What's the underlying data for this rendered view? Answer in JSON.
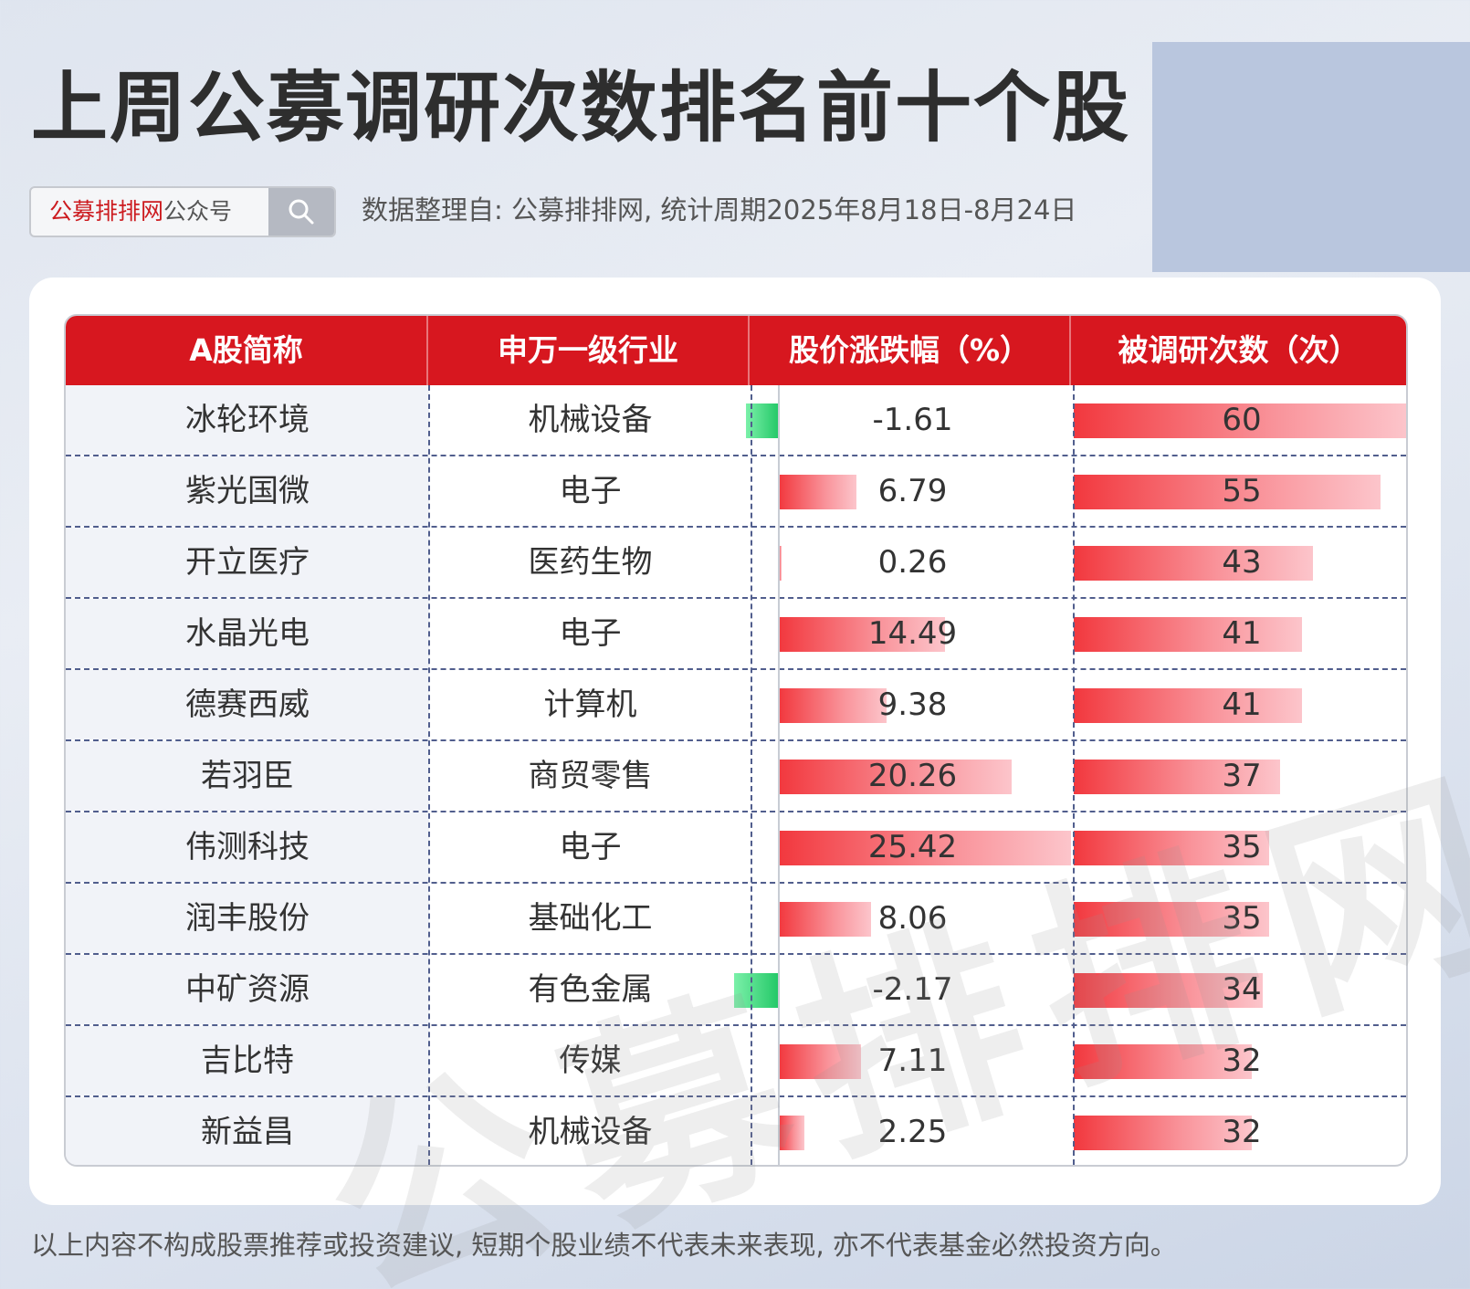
{
  "title": "上周公募调研次数排名前十个股",
  "search": {
    "brand": "公募排排网",
    "suffix": "公众号"
  },
  "source": "数据整理自: 公募排排网, 统计周期2025年8月18日-8月24日",
  "watermark": "公募排排网",
  "disclaimer": "以上内容不构成股票推荐或投资建议, 短期个股业绩不代表未来表现, 亦不代表基金必然投资方向。",
  "colors": {
    "header": "#d7171f",
    "positive": "#f2383e",
    "negative": "#23c867"
  },
  "chart_data": {
    "type": "table",
    "columns": [
      "A股简称",
      "申万一级行业",
      "股价涨跌幅（%）",
      "被调研次数（次）"
    ],
    "rows": [
      {
        "name": "冰轮环境",
        "industry": "机械设备",
        "change": "-1.61",
        "count": "60"
      },
      {
        "name": "紫光国微",
        "industry": "电子",
        "change": "6.79",
        "count": "55"
      },
      {
        "name": "开立医疗",
        "industry": "医药生物",
        "change": "0.26",
        "count": "43"
      },
      {
        "name": "水晶光电",
        "industry": "电子",
        "change": "14.49",
        "count": "41"
      },
      {
        "name": "德赛西威",
        "industry": "计算机",
        "change": "9.38",
        "count": "41"
      },
      {
        "name": "若羽臣",
        "industry": "商贸零售",
        "change": "20.26",
        "count": "37"
      },
      {
        "name": "伟测科技",
        "industry": "电子",
        "change": "25.42",
        "count": "35"
      },
      {
        "name": "润丰股份",
        "industry": "基础化工",
        "change": "8.06",
        "count": "35"
      },
      {
        "name": "中矿资源",
        "industry": "有色金属",
        "change": "-2.17",
        "count": "34"
      },
      {
        "name": "吉比特",
        "industry": "传媒",
        "change": "7.11",
        "count": "32"
      },
      {
        "name": "新益昌",
        "industry": "机械设备",
        "change": "2.25",
        "count": "32"
      }
    ]
  }
}
